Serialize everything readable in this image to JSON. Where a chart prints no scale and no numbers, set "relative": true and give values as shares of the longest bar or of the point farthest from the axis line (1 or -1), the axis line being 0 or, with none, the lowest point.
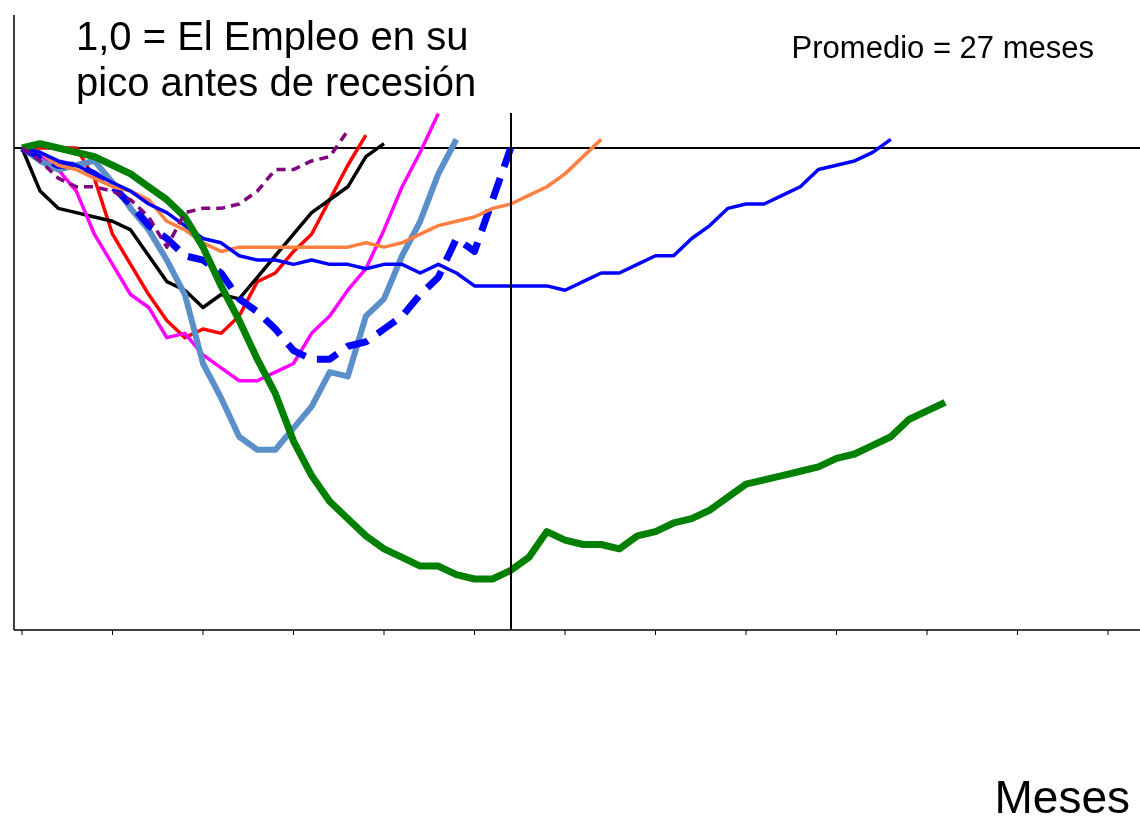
{
  "chart_data": {
    "type": "line",
    "relative": true,
    "title": "1,0 = El Empleo en su pico antes de recesión",
    "xlabel": "Meses",
    "categories": [
      null,
      null,
      null,
      null,
      null,
      null,
      null,
      null,
      null,
      null,
      null,
      null,
      null,
      null,
      null,
      null,
      null,
      null,
      null,
      null,
      null,
      null,
      null,
      null,
      null,
      null,
      null,
      null,
      null,
      null,
      null,
      null,
      null,
      null,
      null,
      null,
      null,
      null,
      null,
      null,
      null,
      null,
      null,
      null,
      null,
      null,
      null,
      null,
      null,
      null,
      null,
      null,
      null,
      null,
      null,
      null,
      null,
      null,
      null,
      null,
      null
    ],
    "marker": "none",
    "annotations": [
      "Promedio = 27 meses"
    ],
    "series": [
      {
        "color": "#800080",
        "line_style": "dashed",
        "values": [
          0,
          -0.03,
          -0.07,
          -0.09,
          -0.09,
          -0.1,
          -0.12,
          -0.16,
          -0.23,
          -0.15,
          -0.14,
          -0.14,
          -0.13,
          -0.1,
          -0.05,
          -0.05,
          -0.03,
          -0.02,
          0.04,
          null,
          null,
          null,
          null,
          null,
          null,
          null,
          null,
          null,
          null,
          null,
          null,
          null,
          null,
          null,
          null,
          null,
          null,
          null,
          null,
          null,
          null,
          null,
          null,
          null,
          null,
          null,
          null,
          null,
          null,
          null,
          null,
          null,
          null,
          null,
          null,
          null,
          null,
          null,
          null,
          null,
          null
        ]
      },
      {
        "color": "#ff0000",
        "line_style": "solid",
        "values": [
          0,
          0,
          0,
          0,
          -0.07,
          -0.2,
          -0.27,
          -0.34,
          -0.4,
          -0.44,
          -0.42,
          -0.43,
          -0.39,
          -0.31,
          -0.29,
          -0.24,
          -0.2,
          -0.12,
          -0.04,
          0.03,
          null,
          null,
          null,
          null,
          null,
          null,
          null,
          null,
          null,
          null,
          null,
          null,
          null,
          null,
          null,
          null,
          null,
          null,
          null,
          null,
          null,
          null,
          null,
          null,
          null,
          null,
          null,
          null,
          null,
          null,
          null,
          null,
          null,
          null,
          null,
          null,
          null,
          null,
          null,
          null,
          null
        ]
      },
      {
        "color": "#000000",
        "line_style": "solid",
        "values": [
          0,
          -0.1,
          -0.14,
          -0.15,
          -0.16,
          -0.17,
          -0.19,
          -0.25,
          -0.31,
          -0.33,
          -0.37,
          -0.34,
          -0.35,
          -0.3,
          -0.25,
          -0.2,
          -0.15,
          -0.12,
          -0.09,
          -0.02,
          0.01,
          null,
          null,
          null,
          null,
          null,
          null,
          null,
          null,
          null,
          null,
          null,
          null,
          null,
          null,
          null,
          null,
          null,
          null,
          null,
          null,
          null,
          null,
          null,
          null,
          null,
          null,
          null,
          null,
          null,
          null,
          null,
          null,
          null,
          null,
          null,
          null,
          null,
          null,
          null,
          null
        ]
      },
      {
        "color": "#ff00ff",
        "line_style": "solid",
        "values": [
          0,
          -0.02,
          -0.05,
          -0.1,
          -0.2,
          -0.27,
          -0.34,
          -0.37,
          -0.44,
          -0.43,
          -0.48,
          -0.51,
          -0.54,
          -0.54,
          -0.52,
          -0.5,
          -0.43,
          -0.39,
          -0.33,
          -0.28,
          -0.19,
          -0.09,
          -0.01,
          0.08,
          null,
          null,
          null,
          null,
          null,
          null,
          null,
          null,
          null,
          null,
          null,
          null,
          null,
          null,
          null,
          null,
          null,
          null,
          null,
          null,
          null,
          null,
          null,
          null,
          null,
          null,
          null,
          null,
          null,
          null,
          null,
          null,
          null,
          null,
          null,
          null,
          null
        ]
      },
      {
        "color": "#5b8fc9",
        "line_style": "solid",
        "values": [
          0,
          -0.03,
          -0.05,
          -0.04,
          -0.03,
          -0.08,
          -0.14,
          -0.19,
          -0.26,
          -0.34,
          -0.5,
          -0.58,
          -0.67,
          -0.7,
          -0.7,
          -0.65,
          -0.6,
          -0.52,
          -0.53,
          -0.39,
          -0.35,
          -0.25,
          -0.17,
          -0.06,
          0.02,
          null,
          null,
          null,
          null,
          null,
          null,
          null,
          null,
          null,
          null,
          null,
          null,
          null,
          null,
          null,
          null,
          null,
          null,
          null,
          null,
          null,
          null,
          null,
          null,
          null,
          null,
          null,
          null,
          null,
          null,
          null,
          null,
          null,
          null,
          null,
          null
        ]
      },
      {
        "color": "#0000ff",
        "line_style": "dashed",
        "values": [
          0,
          -0.02,
          -0.04,
          -0.04,
          -0.06,
          -0.09,
          -0.13,
          -0.18,
          -0.21,
          -0.25,
          -0.26,
          -0.29,
          -0.35,
          -0.38,
          -0.42,
          -0.47,
          -0.49,
          -0.49,
          -0.46,
          -0.45,
          -0.42,
          -0.39,
          -0.34,
          -0.3,
          -0.21,
          -0.24,
          -0.12,
          0.0,
          null,
          null,
          null,
          null,
          null,
          null,
          null,
          null,
          null,
          null,
          null,
          null,
          null,
          null,
          null,
          null,
          null,
          null,
          null,
          null,
          null,
          null,
          null,
          null,
          null,
          null,
          null,
          null,
          null,
          null,
          null,
          null,
          null
        ]
      },
      {
        "color": "#ff8040",
        "line_style": "solid",
        "values": [
          0,
          -0.01,
          -0.04,
          -0.05,
          -0.07,
          -0.09,
          -0.1,
          -0.12,
          -0.17,
          -0.19,
          -0.22,
          -0.24,
          -0.23,
          -0.23,
          -0.23,
          -0.23,
          -0.23,
          -0.23,
          -0.23,
          -0.22,
          -0.23,
          -0.22,
          -0.2,
          -0.18,
          -0.17,
          -0.16,
          -0.14,
          -0.13,
          -0.11,
          -0.09,
          -0.06,
          -0.02,
          0.02,
          null,
          null,
          null,
          null,
          null,
          null,
          null,
          null,
          null,
          null,
          null,
          null,
          null,
          null,
          null,
          null,
          null,
          null,
          null,
          null,
          null,
          null,
          null,
          null,
          null,
          null,
          null,
          null
        ]
      },
      {
        "color": "#0000ff",
        "line_style": "solid",
        "values": [
          0,
          -0.01,
          -0.03,
          -0.04,
          -0.06,
          -0.08,
          -0.1,
          -0.13,
          -0.15,
          -0.18,
          -0.21,
          -0.22,
          -0.25,
          -0.26,
          -0.26,
          -0.27,
          -0.26,
          -0.27,
          -0.27,
          -0.28,
          -0.27,
          -0.27,
          -0.29,
          -0.27,
          -0.29,
          -0.32,
          -0.32,
          -0.32,
          -0.32,
          -0.32,
          -0.33,
          -0.31,
          -0.29,
          -0.29,
          -0.27,
          -0.25,
          -0.25,
          -0.21,
          -0.18,
          -0.14,
          -0.13,
          -0.13,
          -0.11,
          -0.09,
          -0.05,
          -0.04,
          -0.03,
          -0.01,
          0.02,
          null,
          null,
          null,
          null,
          null,
          null,
          null,
          null,
          null,
          null,
          null,
          null
        ]
      },
      {
        "color": "#008000",
        "line_style": "solid",
        "values": [
          0,
          0.01,
          0,
          -0.01,
          -0.02,
          -0.04,
          -0.06,
          -0.09,
          -0.12,
          -0.16,
          -0.23,
          -0.32,
          -0.4,
          -0.49,
          -0.57,
          -0.68,
          -0.76,
          -0.82,
          -0.86,
          -0.9,
          -0.93,
          -0.95,
          -0.97,
          -0.97,
          -0.99,
          -1.0,
          -1.0,
          -0.98,
          -0.95,
          -0.89,
          -0.91,
          -0.92,
          -0.92,
          -0.93,
          -0.9,
          -0.89,
          -0.87,
          -0.86,
          -0.84,
          -0.81,
          -0.78,
          -0.77,
          -0.76,
          -0.75,
          -0.74,
          -0.72,
          -0.71,
          -0.69,
          -0.67,
          -0.63,
          -0.61,
          -0.59,
          null,
          null,
          null,
          null,
          null,
          null,
          null,
          null,
          null
        ]
      }
    ]
  }
}
